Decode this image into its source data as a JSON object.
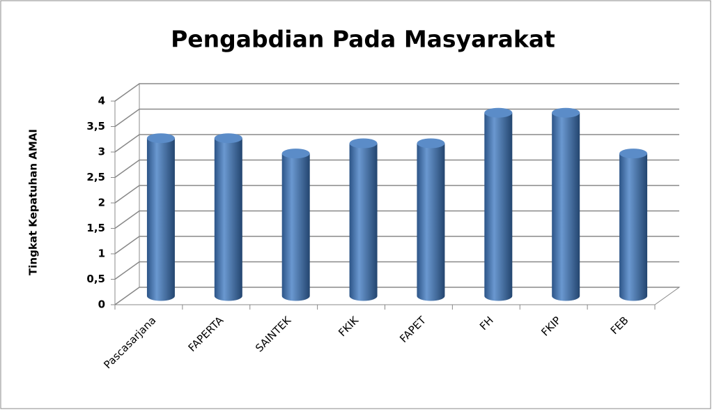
{
  "chart_data": {
    "type": "bar",
    "title": "Pengabdian Pada Masyarakat",
    "y_label": "Tingkat Kepatuhan AMAI",
    "categories": [
      "Pascasarjana",
      "FAPERTA",
      "SAINTEK",
      "FKIK",
      "FAPET",
      "FH",
      "FKIP",
      "FEB"
    ],
    "values": [
      3.1,
      3.1,
      2.8,
      3.0,
      3.0,
      3.6,
      3.6,
      2.8
    ],
    "color": "#4f81bd",
    "ylim": [
      0,
      4
    ],
    "yticks": [
      0,
      {
        "value": 0.5,
        "label": "0,5"
      },
      1,
      {
        "value": 1.5,
        "label": "1,5"
      },
      2,
      {
        "value": 2.5,
        "label": "2,5"
      },
      3,
      {
        "value": 3.5,
        "label": "3,5"
      },
      4
    ],
    "grid": true
  }
}
